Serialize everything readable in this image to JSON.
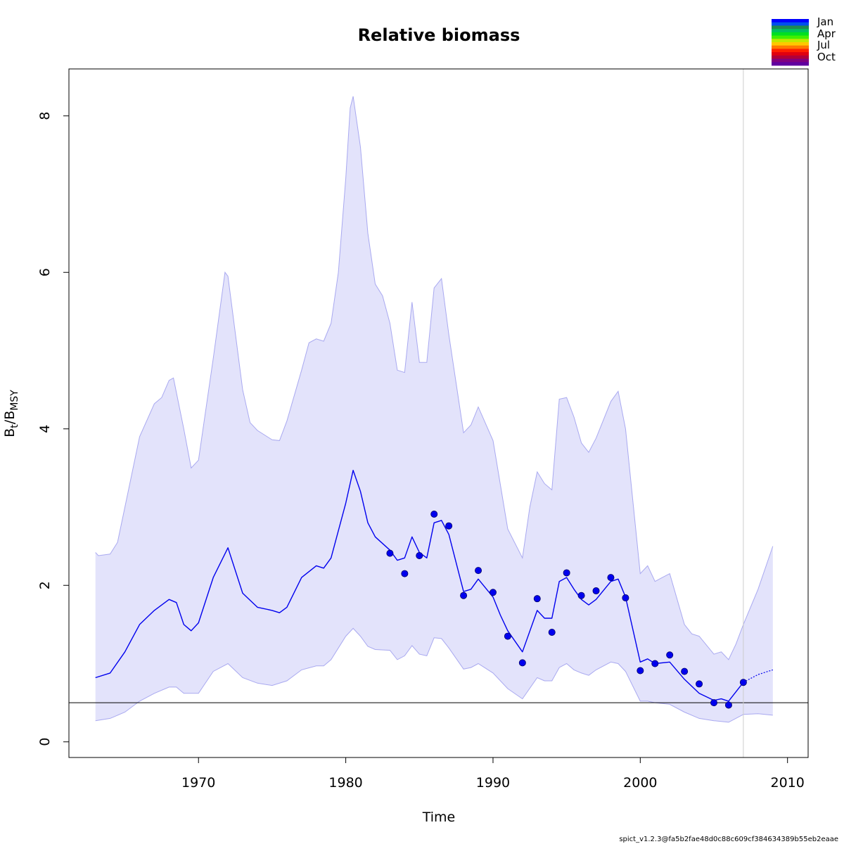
{
  "chart_data": {
    "type": "line",
    "title": "Relative biomass",
    "xlabel": "Time",
    "ylabel": {
      "main": "B",
      "sub1": "t",
      "sep": "/B",
      "sub2": "MSY"
    },
    "xlim": [
      1961.2,
      2011.4
    ],
    "ylim": [
      -0.2,
      8.6
    ],
    "xticks": [
      1970,
      1980,
      1990,
      2000,
      2010
    ],
    "yticks": [
      0,
      2,
      4,
      6,
      8
    ],
    "reference_line": {
      "y": 0.5
    },
    "vertical_line": {
      "x": 2007
    },
    "colors": {
      "main": "#0000ee",
      "band": "#e3e3fb",
      "band_edge": "#a9a9f0",
      "vline": "#cccccc"
    },
    "estimate": {
      "x": [
        1963.0,
        1964.0,
        1965.0,
        1966.0,
        1967.0,
        1968.0,
        1968.5,
        1969.0,
        1969.5,
        1970.0,
        1971.0,
        1972.0,
        1973.0,
        1974.0,
        1975.0,
        1975.5,
        1976.0,
        1977.0,
        1978.0,
        1978.5,
        1979.0,
        1980.0,
        1980.5,
        1981.0,
        1981.5,
        1982.0,
        1983.0,
        1983.5,
        1984.0,
        1984.5,
        1985.0,
        1985.5,
        1986.0,
        1986.5,
        1987.0,
        1988.0,
        1988.5,
        1989.0,
        1990.0,
        1990.5,
        1991.0,
        1992.0,
        1993.0,
        1993.5,
        1994.0,
        1994.5,
        1995.0,
        1995.5,
        1996.0,
        1996.5,
        1997.0,
        1998.0,
        1998.5,
        1999.0,
        2000.0,
        2000.5,
        2001.0,
        2002.0,
        2003.0,
        2004.0,
        2005.0,
        2005.5,
        2006.0,
        2007.0
      ],
      "y": [
        0.82,
        0.88,
        1.15,
        1.5,
        1.68,
        1.82,
        1.78,
        1.5,
        1.42,
        1.52,
        2.1,
        2.48,
        1.9,
        1.72,
        1.68,
        1.65,
        1.72,
        2.1,
        2.25,
        2.22,
        2.35,
        3.05,
        3.47,
        3.2,
        2.8,
        2.62,
        2.45,
        2.32,
        2.35,
        2.62,
        2.42,
        2.35,
        2.8,
        2.83,
        2.65,
        1.92,
        1.95,
        2.08,
        1.85,
        1.62,
        1.42,
        1.15,
        1.68,
        1.58,
        1.58,
        2.05,
        2.1,
        1.95,
        1.82,
        1.75,
        1.82,
        2.05,
        2.08,
        1.85,
        1.02,
        1.06,
        1.0,
        1.02,
        0.8,
        0.62,
        0.53,
        0.55,
        0.52,
        0.76
      ]
    },
    "forecast": {
      "x": [
        2007.0,
        2007.5,
        2008.0,
        2008.5,
        2009.0
      ],
      "y": [
        0.76,
        0.81,
        0.86,
        0.89,
        0.92
      ]
    },
    "upper": {
      "x": [
        1963.0,
        1963.2,
        1964.0,
        1964.5,
        1965.0,
        1966.0,
        1967.0,
        1967.5,
        1968.0,
        1968.3,
        1969.0,
        1969.5,
        1970.0,
        1971.0,
        1971.8,
        1972.0,
        1973.0,
        1973.5,
        1974.0,
        1975.0,
        1975.5,
        1976.0,
        1977.0,
        1977.5,
        1978.0,
        1978.5,
        1979.0,
        1979.5,
        1980.0,
        1980.3,
        1980.5,
        1981.0,
        1981.5,
        1982.0,
        1982.5,
        1983.0,
        1983.5,
        1984.0,
        1984.5,
        1985.0,
        1985.5,
        1986.0,
        1986.5,
        1987.0,
        1988.0,
        1988.5,
        1989.0,
        1990.0,
        1991.0,
        1992.0,
        1992.5,
        1993.0,
        1993.5,
        1994.0,
        1994.5,
        1995.0,
        1995.5,
        1996.0,
        1996.5,
        1997.0,
        1998.0,
        1998.5,
        1999.0,
        2000.0,
        2000.5,
        2001.0,
        2001.5,
        2002.0,
        2003.0,
        2003.5,
        2004.0,
        2005.0,
        2005.5,
        2006.0,
        2006.5,
        2007.0,
        2008.0,
        2009.0
      ],
      "y": [
        2.42,
        2.38,
        2.4,
        2.55,
        3.0,
        3.9,
        4.32,
        4.4,
        4.62,
        4.65,
        4.0,
        3.5,
        3.6,
        4.9,
        6.0,
        5.95,
        4.5,
        4.08,
        3.98,
        3.86,
        3.85,
        4.1,
        4.75,
        5.1,
        5.15,
        5.12,
        5.35,
        6.0,
        7.2,
        8.1,
        8.25,
        7.6,
        6.5,
        5.85,
        5.7,
        5.35,
        4.75,
        4.72,
        5.62,
        4.85,
        4.85,
        5.8,
        5.92,
        5.2,
        3.95,
        4.05,
        4.28,
        3.85,
        2.72,
        2.35,
        3.0,
        3.45,
        3.3,
        3.22,
        4.38,
        4.4,
        4.15,
        3.82,
        3.7,
        3.88,
        4.35,
        4.48,
        4.0,
        2.15,
        2.25,
        2.05,
        2.1,
        2.15,
        1.5,
        1.38,
        1.35,
        1.12,
        1.15,
        1.05,
        1.25,
        1.5,
        1.95,
        2.5
      ]
    },
    "lower": {
      "x": [
        1963.0,
        1964.0,
        1965.0,
        1966.0,
        1967.0,
        1968.0,
        1968.5,
        1969.0,
        1970.0,
        1971.0,
        1972.0,
        1973.0,
        1974.0,
        1975.0,
        1976.0,
        1977.0,
        1978.0,
        1978.5,
        1979.0,
        1980.0,
        1980.5,
        1981.0,
        1981.5,
        1982.0,
        1983.0,
        1983.5,
        1984.0,
        1984.5,
        1985.0,
        1985.5,
        1986.0,
        1986.5,
        1987.0,
        1988.0,
        1988.5,
        1989.0,
        1990.0,
        1991.0,
        1992.0,
        1993.0,
        1993.5,
        1994.0,
        1994.5,
        1995.0,
        1995.5,
        1996.0,
        1996.5,
        1997.0,
        1998.0,
        1998.5,
        1999.0,
        2000.0,
        2000.5,
        2001.0,
        2002.0,
        2003.0,
        2004.0,
        2005.0,
        2006.0,
        2007.0,
        2008.0,
        2009.0
      ],
      "y": [
        0.27,
        0.3,
        0.38,
        0.52,
        0.62,
        0.7,
        0.7,
        0.62,
        0.62,
        0.9,
        1.0,
        0.82,
        0.75,
        0.72,
        0.78,
        0.92,
        0.97,
        0.97,
        1.05,
        1.35,
        1.45,
        1.35,
        1.22,
        1.18,
        1.17,
        1.05,
        1.1,
        1.23,
        1.12,
        1.1,
        1.33,
        1.32,
        1.2,
        0.93,
        0.95,
        1.0,
        0.88,
        0.68,
        0.55,
        0.82,
        0.78,
        0.78,
        0.95,
        1.0,
        0.92,
        0.88,
        0.85,
        0.92,
        1.02,
        1.0,
        0.9,
        0.52,
        0.52,
        0.5,
        0.48,
        0.38,
        0.3,
        0.27,
        0.25,
        0.35,
        0.36,
        0.34
      ]
    },
    "observations": {
      "x": [
        1983,
        1984,
        1985,
        1986,
        1987,
        1988,
        1989,
        1990,
        1991,
        1992,
        1993,
        1994,
        1995,
        1996,
        1997,
        1998,
        1999,
        2000,
        2001,
        2002,
        2003,
        2004,
        2005,
        2006,
        2007
      ],
      "y": [
        2.41,
        2.15,
        2.38,
        2.91,
        2.76,
        1.87,
        2.19,
        1.91,
        1.35,
        1.01,
        1.83,
        1.4,
        2.16,
        1.87,
        1.93,
        2.1,
        1.84,
        0.91,
        1.0,
        1.11,
        0.9,
        0.74,
        0.5,
        0.47,
        0.76
      ]
    },
    "legend": {
      "position": "top-right",
      "labels": [
        "Jan",
        "Apr",
        "Jul",
        "Oct"
      ],
      "colors": [
        "#0000ff",
        "#0050ee",
        "#1e8a50",
        "#00c060",
        "#00e020",
        "#40f000",
        "#c0e800",
        "#ffc800",
        "#ff7800",
        "#ff2000",
        "#e00010",
        "#b0003a",
        "#800080",
        "#6000a0"
      ]
    },
    "footer": "spict_v1.2.3@fa5b2fae48d0c88c609cf384634389b55eb2eaae"
  }
}
